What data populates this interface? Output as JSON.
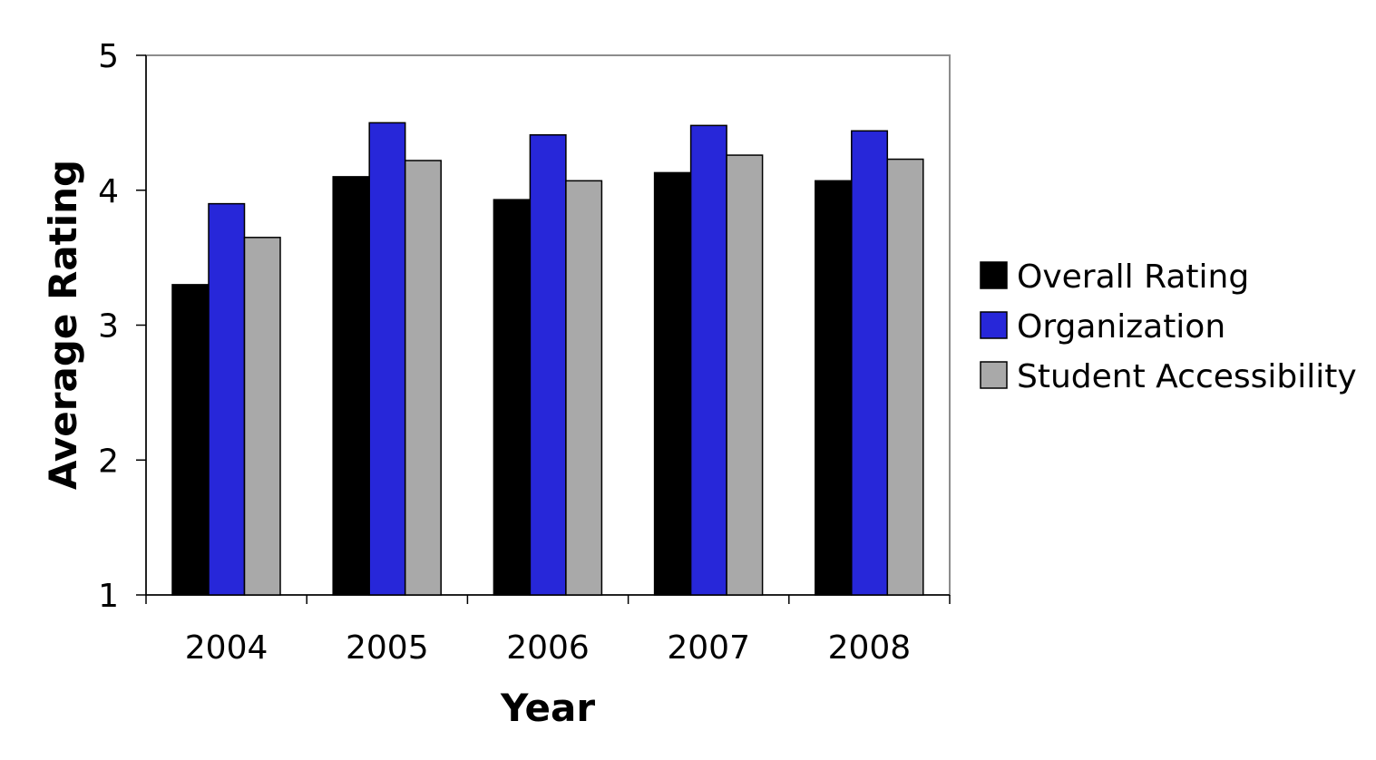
{
  "chart_data": {
    "type": "bar",
    "title": "",
    "xlabel": "Year",
    "ylabel": "Average Rating",
    "ylim": [
      1,
      5
    ],
    "yticks": [
      1,
      2,
      3,
      4,
      5
    ],
    "categories": [
      "2004",
      "2005",
      "2006",
      "2007",
      "2008"
    ],
    "series": [
      {
        "name": "Overall Rating",
        "color": "#000000",
        "values": [
          3.3,
          4.1,
          3.93,
          4.13,
          4.07
        ]
      },
      {
        "name": "Organization",
        "color": "#2727d9",
        "values": [
          3.9,
          4.5,
          4.41,
          4.48,
          4.44
        ]
      },
      {
        "name": "Student Accessibility",
        "color": "#a9a9a9",
        "values": [
          3.65,
          4.22,
          4.07,
          4.26,
          4.23
        ]
      }
    ],
    "grid": false,
    "legend": "right"
  }
}
